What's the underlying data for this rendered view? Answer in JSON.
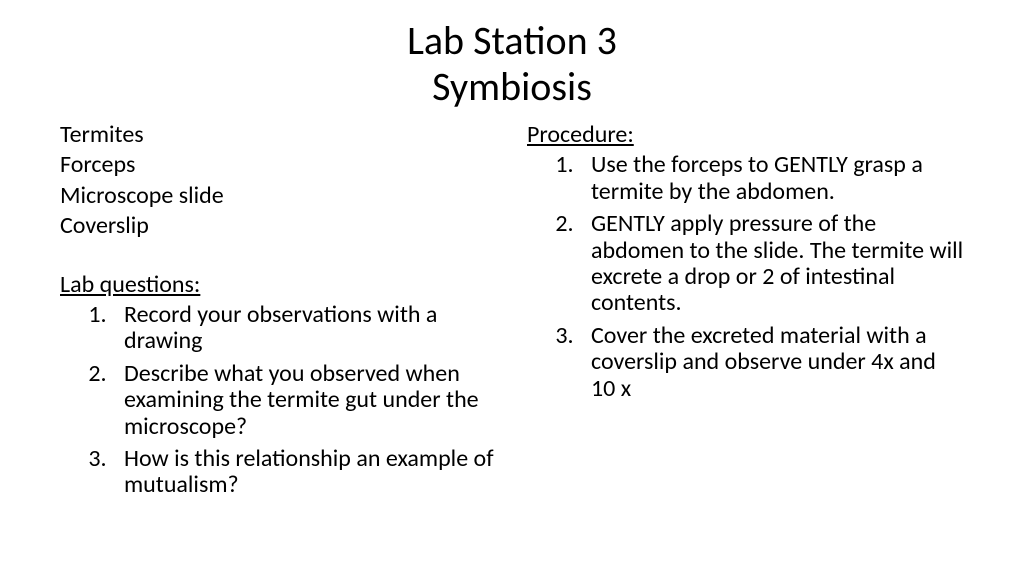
{
  "title": {
    "line1": "Lab Station 3",
    "line2": "Symbiosis"
  },
  "left": {
    "materials": [
      "Termites",
      "Forceps",
      "Microscope slide",
      "Coverslip"
    ],
    "questions_header": "Lab questions:",
    "questions": [
      "Record your observations with a drawing",
      "Describe what you observed when examining the termite gut under the microscope?",
      "How is this relationship an example of mutualism?"
    ]
  },
  "right": {
    "procedure_header": "Procedure:",
    "steps": [
      "Use the forceps to GENTLY grasp a termite by the abdomen.",
      "GENTLY apply pressure of the abdomen to the slide.  The termite will excrete a drop or 2 of intestinal contents.",
      "Cover the excreted material with a coverslip and observe under 4x and 10 x"
    ]
  },
  "style": {
    "background_color": "#ffffff",
    "text_color": "#000000",
    "title_fontsize": 40,
    "body_fontsize": 24,
    "font_family": "Calibri"
  }
}
